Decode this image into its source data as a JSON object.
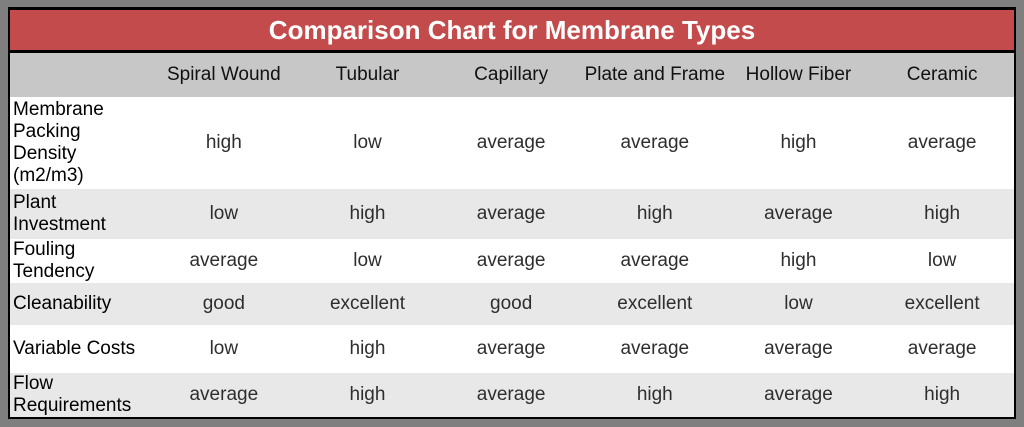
{
  "banner": {
    "title": "Comparison Chart for Membrane Types"
  },
  "colors": {
    "banner_red": "#c44b4b",
    "frame_gray": "#7f7f7f",
    "header_row_gray": "#c7c7c7",
    "alt_row_gray": "#e8e8e8",
    "row_white": "#ffffff",
    "border_black": "#000000",
    "title_text": "#ffffff",
    "label_text": "#000000",
    "value_text": "#2e2e2e"
  },
  "chart_data": {
    "type": "table",
    "title": "Comparison Chart for Membrane Types",
    "columns": [
      "Spiral Wound",
      "Tubular",
      "Capillary",
      "Plate and Frame",
      "Hollow Fiber",
      "Ceramic"
    ],
    "rows": [
      {
        "label": "Membrane Packing Density (m2/m3)",
        "values": [
          "high",
          "low",
          "average",
          "average",
          "high",
          "average"
        ]
      },
      {
        "label": "Plant Investment",
        "values": [
          "low",
          "high",
          "average",
          "high",
          "average",
          "high"
        ]
      },
      {
        "label": "Fouling Tendency",
        "values": [
          "average",
          "low",
          "average",
          "average",
          "high",
          "low"
        ]
      },
      {
        "label": "Cleanability",
        "values": [
          "good",
          "excellent",
          "good",
          "excellent",
          "low",
          "excellent"
        ]
      },
      {
        "label": "Variable Costs",
        "values": [
          "low",
          "high",
          "average",
          "average",
          "average",
          "average"
        ]
      },
      {
        "label": "Flow Requirements",
        "values": [
          "average",
          "high",
          "average",
          "high",
          "average",
          "high"
        ]
      }
    ],
    "layout": {
      "legend": "none",
      "grid": "horizontal-row-banding"
    }
  }
}
